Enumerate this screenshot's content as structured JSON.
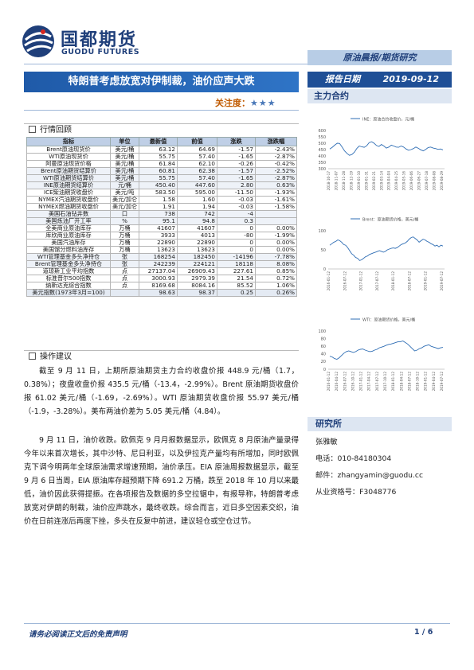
{
  "header": {
    "company_cn": "国都期货",
    "company_en": "GUODU FUTURES",
    "report_type": "原油晨报/期货研究",
    "title": "特朗普考虑放宽对伊制裁，油价应声大跌",
    "attention_label": "关注度：",
    "attention_stars": "★★★",
    "date_label": "报告日期",
    "date_value": "2019-09-12",
    "contracts_label": "主力合约"
  },
  "market_review": {
    "heading": "行情回顾",
    "columns": [
      "指标",
      "单位",
      "最新值",
      "前值",
      "涨跌",
      "涨跌幅"
    ],
    "groups": [
      [
        [
          "Brent原油现货价",
          "美元/桶",
          "63.12",
          "64.69",
          "-1.57",
          "-2.43%"
        ],
        [
          "WTI原油现货价",
          "美元/桶",
          "55.75",
          "57.40",
          "-1.65",
          "-2.87%"
        ],
        [
          "阿曼原油现货价格",
          "美元/桶",
          "61.84",
          "62.10",
          "-0.26",
          "-0.42%"
        ]
      ],
      [
        [
          "Brent原油期货结算价",
          "美元/桶",
          "60.81",
          "62.38",
          "-1.57",
          "-2.52%"
        ],
        [
          "WTI原油期货结算价",
          "美元/桶",
          "55.75",
          "57.40",
          "-1.65",
          "-2.87%"
        ],
        [
          "INE原油期货结算价",
          "元/桶",
          "450.40",
          "447.60",
          "2.80",
          "0.63%"
        ]
      ],
      [
        [
          "ICE柴油期货收盘价",
          "美元/吨",
          "583.50",
          "595.00",
          "-11.50",
          "-1.93%"
        ],
        [
          "NYMEX汽油期货收盘价",
          "美元/加仑",
          "1.58",
          "1.60",
          "-0.03",
          "-1.61%"
        ],
        [
          "NYMEX燃油期货收盘价",
          "美元/加仑",
          "1.91",
          "1.94",
          "-0.03",
          "-1.58%"
        ]
      ],
      [
        [
          "美国石油钻井数",
          "口",
          "738",
          "742",
          "-4",
          ""
        ],
        [
          "美国炼油厂开工率",
          "%",
          "95.1",
          "94.8",
          "0.3",
          ""
        ]
      ],
      [
        [
          "全美商业原油库存",
          "万桶",
          "41607",
          "41607",
          "0",
          "0.00%"
        ],
        [
          "库欣商业原油库存",
          "万桶",
          "3933",
          "4013",
          "-80",
          "-1.99%"
        ],
        [
          "美国汽油库存",
          "万桶",
          "22890",
          "22890",
          "0",
          "0.00%"
        ],
        [
          "美国馏分燃料油库存",
          "万桶",
          "13623",
          "13623",
          "0",
          "0.00%"
        ]
      ],
      [
        [
          "WTI管理基金多头净持仓",
          "张",
          "168254",
          "182450",
          "-14196",
          "-7.78%"
        ],
        [
          "Brent管理基金多头净持仓",
          "张",
          "242239",
          "224121",
          "18118",
          "8.08%"
        ]
      ],
      [
        [
          "道琼斯工业平均指数",
          "点",
          "27137.04",
          "26909.43",
          "227.61",
          "0.85%"
        ],
        [
          "标准普尔500指数",
          "点",
          "3000.93",
          "2979.39",
          "21.54",
          "0.72%"
        ],
        [
          "纳斯达克综合指数",
          "点",
          "8169.68",
          "8084.16",
          "85.52",
          "1.06%"
        ]
      ]
    ],
    "footer_row": [
      "美元指数(1973年3月=100)",
      "",
      "98.63",
      "98.37",
      "0.25",
      "0.26%"
    ]
  },
  "advice": {
    "heading": "操作建议",
    "paragraphs": [
      "截至 9 月 11 日，上期所原油期货主力合约收盘价报 448.9 元/桶（1.7，0.38%）；夜盘收盘价报 435.5 元/桶（-13.4，-2.99%）。Brent 原油期货收盘价报 61.02 美元/桶（-1.69，-2.69%）。WTI 原油期货收盘价报 55.97 美元/桶（-1.9，-3.28%）。美布两油价差为 5.05 美元/桶（4.84）。",
      "9 月 11 日，油价收跌。欧佩克 9 月月报数据显示，欧佩克 8 月原油产量录得今年以来首次增长，其中沙特、尼日利亚，以及伊拉克产量均有所增加，同时欧佩克下调今明两年全球原油需求增速预期，油价承压。EIA 原油周报数据显示，截至 9 月 6 日当周，EIA 原油库存超预期下降 691.2 万桶，跌至 2018 年 10 月以来最低，油价因此获得提振。在各项报告及数据的多空拉锯中，有报导称，特朗普考虑放宽对伊朗的制裁，油价应声跳水，最终收跌。综合而言，近日多空因素交织，油价在日前连涨后再度下挫，多头在反复中前进，建议轻仓或空仓过节。"
    ]
  },
  "charts": {
    "colors": {
      "line": "#2e6db4",
      "axis": "#999999",
      "text": "#555555"
    },
    "chart_data": [
      {
        "type": "line",
        "title": "",
        "series": [
          {
            "name": "INE：原油合约收盘价，元/桶",
            "values": [
              455,
              468,
              485,
              500,
              498,
              470,
              440,
              420,
              405,
              412,
              430,
              460,
              478,
              472,
              468,
              480,
              505,
              512,
              500,
              482,
              475,
              490,
              478,
              462,
              470,
              485,
              478,
              470,
              468,
              478,
              470,
              455,
              445,
              450,
              458,
              470,
              460,
              448,
              440,
              452,
              466,
              470,
              462,
              458,
              452,
              455,
              448
            ]
          }
        ],
        "x_labels": [
          "2018-10-17",
          "2018-11-07",
          "2018-11-28",
          "2018-12-19",
          "2019-01-10",
          "2019-01-31",
          "2019-02-21",
          "2019-03-14",
          "2019-04-04",
          "2019-04-25",
          "2019-05-16",
          "2019-06-06",
          "2019-06-27",
          "2019-07-18",
          "2019-08-08",
          "2019-08-29"
        ],
        "y_ticks": [
          300,
          350,
          400,
          450,
          500,
          550,
          600
        ],
        "ylim": [
          300,
          600
        ]
      },
      {
        "type": "line",
        "title": "",
        "series": [
          {
            "name": "Brent：原油期货价格，美元/桶",
            "values": [
              62,
              66,
              70,
              72,
              76,
              74,
              70,
              64,
              62,
              56,
              48,
              40,
              36,
              30,
              28,
              22,
              24,
              28,
              32,
              34,
              38,
              40,
              42,
              44,
              46,
              48,
              46,
              44,
              46,
              50,
              52,
              54,
              55,
              54,
              56,
              60,
              64,
              66,
              68,
              72,
              78,
              82,
              84,
              80,
              76,
              70,
              74,
              78,
              76,
              72,
              70,
              66,
              64,
              60,
              62,
              58,
              62,
              60
            ]
          }
        ],
        "x_labels": [
          "2016-01-12",
          "2016-07-12",
          "2017-01-12",
          "2017-07-12",
          "2018-01-12",
          "2018-07-12",
          "2019-01-12",
          "2019-07-12"
        ],
        "y_ticks": [
          0,
          50,
          100
        ],
        "ylim": [
          0,
          100
        ]
      },
      {
        "type": "line",
        "title": "",
        "series": [
          {
            "name": "WTI：原油期货价格，美元/桶",
            "values": [
              34,
              32,
              28,
              26,
              30,
              36,
              42,
              46,
              48,
              46,
              44,
              46,
              50,
              52,
              53,
              50,
              48,
              46,
              47,
              50,
              52,
              56,
              58,
              60,
              63,
              65,
              66,
              68,
              70,
              72,
              72,
              74,
              70,
              66,
              60,
              54,
              48,
              50,
              54,
              56,
              60,
              62,
              64,
              60,
              58,
              56,
              54,
              56,
              57
            ]
          }
        ],
        "x_labels": [
          "2016-01-12",
          "2016-04-12",
          "2016-07-12",
          "2016-10-12",
          "2017-01-12",
          "2017-04-12",
          "2017-07-12",
          "2017-10-12",
          "2018-01-12",
          "2018-04-12",
          "2018-07-12",
          "2018-10-12",
          "2019-01-12",
          "2019-04-12",
          "2019-07-12"
        ],
        "y_ticks": [
          0,
          20,
          40,
          60,
          80,
          100
        ],
        "ylim": [
          0,
          100
        ]
      }
    ]
  },
  "research": {
    "heading": "研究所",
    "analyst": "张雅敏",
    "phone": "电话：010-84180304",
    "email": "邮件：zhangyamin@guodu.cc",
    "license": "从业资格号：F3048776"
  },
  "footer": {
    "disclaimer": "请务必阅读正文后的免责声明",
    "page": "1 / 6"
  }
}
